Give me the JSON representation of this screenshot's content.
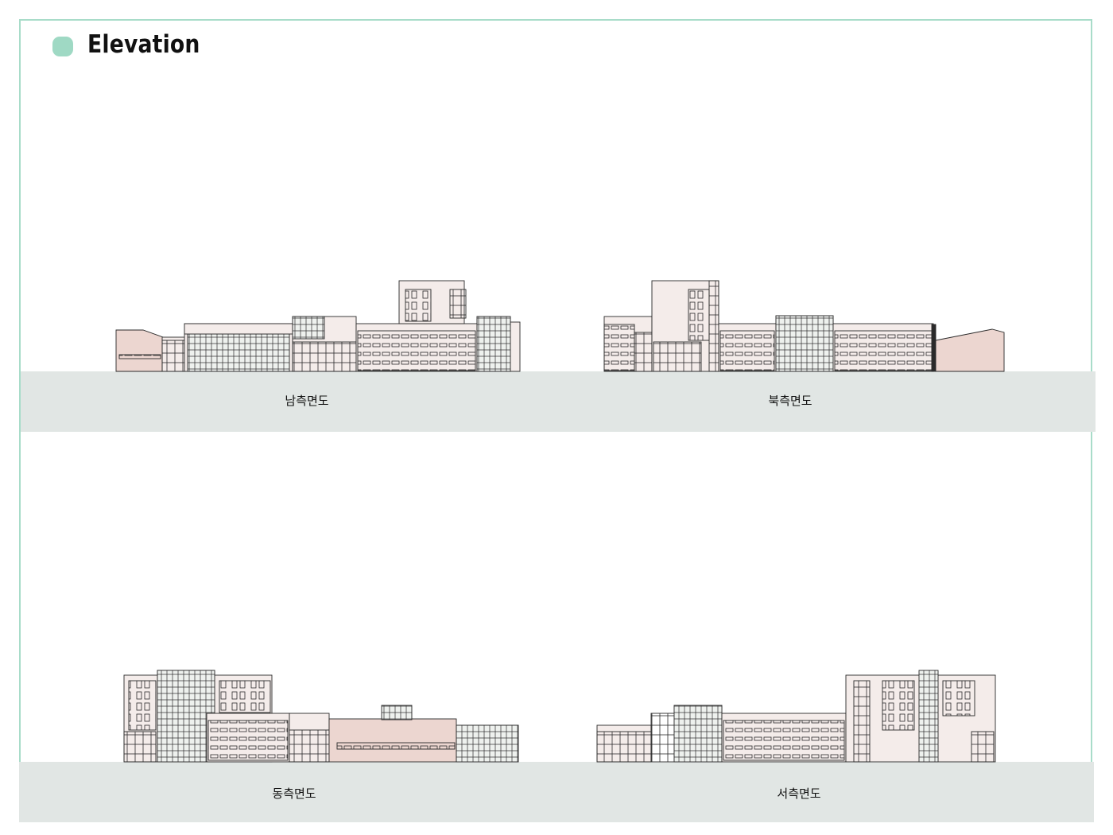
{
  "header": {
    "title": "Elevation",
    "dot_color": "#9fd9c4"
  },
  "colors": {
    "frame": "#a8dcc9",
    "band": "#e1e6e4",
    "wall_light": "#f4ecea",
    "wall_pink": "#ecd6d0",
    "line": "#2a2a2a"
  },
  "elevations": [
    {
      "id": "south",
      "label": "남측면도"
    },
    {
      "id": "north",
      "label": "북측면도"
    },
    {
      "id": "east",
      "label": "동측면도"
    },
    {
      "id": "west",
      "label": "서측면도"
    }
  ]
}
